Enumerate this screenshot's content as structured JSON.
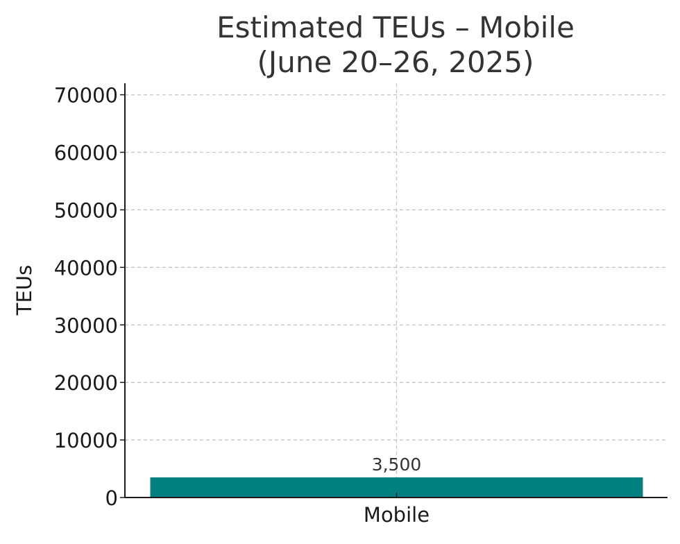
{
  "chart_data": {
    "type": "bar",
    "title": "Estimated TEUs – Mobile\n(June 20–26, 2025)",
    "xlabel": "",
    "ylabel": "TEUs",
    "categories": [
      "Mobile"
    ],
    "values": [
      3500
    ],
    "data_labels": [
      "3,500"
    ],
    "ylim": [
      0,
      72000
    ],
    "yticks": [
      0,
      10000,
      20000,
      30000,
      40000,
      50000,
      60000,
      70000
    ],
    "grid": true,
    "bar_color": "#008080"
  }
}
